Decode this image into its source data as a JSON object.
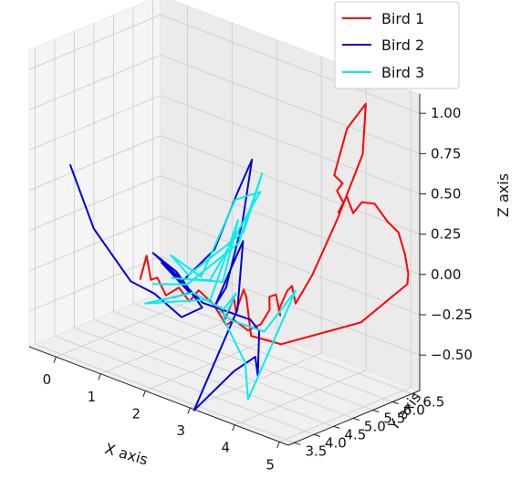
{
  "chart_data": {
    "type": "line",
    "projection": "3d",
    "title": "",
    "xlabel": "X axis",
    "ylabel": "Y axis",
    "zlabel": "Z axis",
    "xlim": [
      -0.6,
      5.2
    ],
    "ylim": [
      3.35,
      6.7
    ],
    "zlim": [
      -0.72,
      1.12
    ],
    "grid": true,
    "legend_position": "top-right",
    "axis_ticks": {
      "x": {
        "values": [
          0,
          1,
          2,
          3,
          4,
          5
        ],
        "labels": [
          "0",
          "1",
          "2",
          "3",
          "4",
          "5"
        ]
      },
      "y": {
        "values": [
          3.5,
          4.0,
          4.5,
          5.0,
          5.5,
          6.0,
          6.5
        ],
        "labels": [
          "3.5",
          "4.0",
          "4.5",
          "5.0",
          "5.5",
          "6.0",
          "6.5"
        ]
      },
      "z": {
        "values": [
          -0.5,
          -0.25,
          0.0,
          0.25,
          0.5,
          0.75,
          1.0
        ],
        "labels": [
          "−0.50",
          "−0.25",
          "0.00",
          "0.25",
          "0.50",
          "0.75",
          "1.00"
        ]
      }
    },
    "series": [
      {
        "name": "Bird 1",
        "color": "#ff0000",
        "points": [
          [
            0.7,
            4.7,
            -0.3
          ],
          [
            0.8,
            4.75,
            -0.15
          ],
          [
            0.85,
            4.8,
            -0.3
          ],
          [
            0.95,
            4.85,
            -0.28
          ],
          [
            1.1,
            4.9,
            -0.38
          ],
          [
            1.3,
            5.0,
            -0.32
          ],
          [
            1.45,
            5.1,
            -0.4
          ],
          [
            1.7,
            5.05,
            -0.3
          ],
          [
            1.9,
            5.2,
            -0.38
          ],
          [
            2.1,
            5.3,
            -0.5
          ],
          [
            2.35,
            5.2,
            -0.43
          ],
          [
            2.5,
            5.4,
            -0.5
          ],
          [
            2.7,
            5.5,
            -0.45
          ],
          [
            2.85,
            5.55,
            -0.35
          ],
          [
            2.8,
            5.6,
            -0.28
          ],
          [
            2.95,
            5.6,
            -0.25
          ],
          [
            3.0,
            5.65,
            -0.38
          ],
          [
            3.1,
            5.5,
            -0.32
          ],
          [
            3.2,
            5.6,
            -0.2
          ],
          [
            3.35,
            5.55,
            -0.15
          ],
          [
            3.3,
            5.7,
            -0.28
          ],
          [
            3.5,
            5.9,
            -0.1
          ],
          [
            3.8,
            6.2,
            0.25
          ],
          [
            4.1,
            6.5,
            0.65
          ],
          [
            4.3,
            6.35,
            1.0
          ],
          [
            4.1,
            6.1,
            0.85
          ],
          [
            3.9,
            6.0,
            0.55
          ],
          [
            4.0,
            6.1,
            0.5
          ],
          [
            3.92,
            6.05,
            0.45
          ],
          [
            4.02,
            6.1,
            0.38
          ],
          [
            3.95,
            6.05,
            0.32
          ],
          [
            4.05,
            6.15,
            0.42
          ],
          [
            4.15,
            6.2,
            0.32
          ],
          [
            4.3,
            6.25,
            0.4
          ],
          [
            4.5,
            6.35,
            0.4
          ],
          [
            4.7,
            6.45,
            0.3
          ],
          [
            4.9,
            6.5,
            0.25
          ],
          [
            5.0,
            6.55,
            0.12
          ],
          [
            5.05,
            6.58,
            0.0
          ],
          [
            5.1,
            6.5,
            -0.05
          ],
          [
            4.5,
            6.0,
            -0.3
          ],
          [
            3.5,
            5.1,
            -0.45
          ],
          [
            3.05,
            4.85,
            -0.42
          ],
          [
            2.9,
            4.9,
            -0.2
          ],
          [
            2.75,
            5.0,
            -0.18
          ],
          [
            2.65,
            4.92,
            -0.32
          ],
          [
            2.55,
            4.98,
            -0.25
          ],
          [
            2.45,
            4.88,
            -0.38
          ],
          [
            2.3,
            4.93,
            -0.33
          ]
        ]
      },
      {
        "name": "Bird 2",
        "color": "#0000dd",
        "points": [
          [
            -0.6,
            4.4,
            0.3
          ],
          [
            0.1,
            4.2,
            0.0
          ],
          [
            0.6,
            4.1,
            -0.1
          ],
          [
            1.1,
            4.0,
            -0.2
          ],
          [
            1.5,
            4.15,
            -0.25
          ],
          [
            1.8,
            4.5,
            -0.4
          ],
          [
            2.0,
            4.8,
            -0.35
          ],
          [
            1.6,
            4.6,
            -0.15
          ],
          [
            1.25,
            4.4,
            -0.05
          ],
          [
            1.7,
            4.65,
            -0.2
          ],
          [
            2.1,
            5.0,
            0.0
          ],
          [
            2.35,
            5.3,
            0.35
          ],
          [
            2.5,
            5.5,
            0.55
          ],
          [
            2.55,
            5.2,
            0.2
          ],
          [
            2.4,
            4.95,
            -0.2
          ],
          [
            2.3,
            4.8,
            -0.3
          ],
          [
            2.5,
            4.9,
            -0.1
          ],
          [
            2.65,
            5.1,
            0.1
          ],
          [
            2.7,
            4.9,
            -0.3
          ],
          [
            2.55,
            4.6,
            -0.55
          ],
          [
            2.3,
            4.25,
            -0.9
          ],
          [
            2.8,
            4.7,
            -0.65
          ],
          [
            3.1,
            4.9,
            -0.55
          ],
          [
            3.2,
            4.85,
            -0.65
          ],
          [
            3.1,
            5.0,
            -0.4
          ],
          [
            2.9,
            5.0,
            -0.35
          ],
          [
            2.1,
            4.7,
            -0.3
          ],
          [
            1.4,
            4.45,
            -0.1
          ],
          [
            1.9,
            4.6,
            -0.25
          ],
          [
            1.6,
            4.5,
            -0.3
          ]
        ]
      },
      {
        "name": "Bird 3",
        "color": "#00eeee",
        "points": [
          [
            0.9,
            4.8,
            -0.32
          ],
          [
            1.4,
            5.1,
            -0.3
          ],
          [
            2.2,
            5.5,
            0.0
          ],
          [
            2.55,
            5.7,
            0.45
          ],
          [
            2.4,
            5.4,
            0.1
          ],
          [
            1.6,
            4.9,
            -0.2
          ],
          [
            1.3,
            4.8,
            -0.1
          ],
          [
            1.8,
            5.0,
            -0.2
          ],
          [
            2.3,
            5.3,
            0.3
          ],
          [
            2.6,
            5.6,
            0.35
          ],
          [
            2.0,
            5.0,
            -0.2
          ],
          [
            1.5,
            4.6,
            -0.2
          ],
          [
            2.2,
            5.1,
            -0.2
          ],
          [
            2.45,
            5.2,
            0.2
          ],
          [
            2.1,
            4.9,
            -0.3
          ],
          [
            0.9,
            4.6,
            -0.42
          ],
          [
            1.7,
            4.9,
            -0.3
          ],
          [
            2.3,
            5.0,
            -0.35
          ],
          [
            2.45,
            5.15,
            -0.25
          ],
          [
            2.35,
            4.95,
            -0.4
          ],
          [
            2.7,
            5.1,
            -0.65
          ],
          [
            2.85,
            5.0,
            -0.85
          ],
          [
            3.3,
            5.7,
            -0.2
          ],
          [
            2.95,
            5.3,
            -0.45
          ],
          [
            2.5,
            5.0,
            -0.4
          ],
          [
            2.3,
            4.9,
            -0.35
          ]
        ]
      }
    ]
  }
}
